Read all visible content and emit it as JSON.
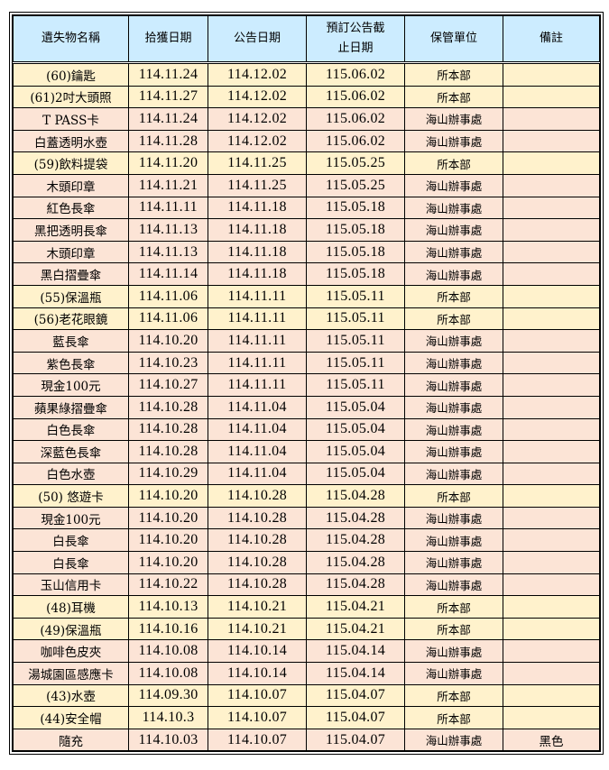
{
  "headers": [
    "遺失物名稱",
    "拾獲日期",
    "公告日期",
    "預訂公告截止日期",
    "保管單位",
    "備註"
  ],
  "header_lines": {
    "deadline_1": "預訂公告截",
    "deadline_2": "止日期"
  },
  "colors": {
    "header": "#CCECFF",
    "main_office_row": "#FFF2CC",
    "branch_row": "#FCE4D6"
  },
  "rows": [
    [
      "(60)鑰匙",
      "114.11.24",
      "114.12.02",
      "115.06.02",
      "所本部",
      ""
    ],
    [
      "(61)2吋大頭照",
      "114.11.27",
      "114.12.02",
      "115.06.02",
      "所本部",
      ""
    ],
    [
      "T PASS卡",
      "114.11.24",
      "114.12.02",
      "115.06.02",
      "海山辦事處",
      ""
    ],
    [
      "白蓋透明水壺",
      "114.11.28",
      "114.12.02",
      "115.06.02",
      "海山辦事處",
      ""
    ],
    [
      "(59)飲料提袋",
      "114.11.20",
      "114.11.25",
      "115.05.25",
      "所本部",
      ""
    ],
    [
      "木頭印章",
      "114.11.21",
      "114.11.25",
      "115.05.25",
      "海山辦事處",
      ""
    ],
    [
      "紅色長傘",
      "114.11.11",
      "114.11.18",
      "115.05.18",
      "海山辦事處",
      ""
    ],
    [
      "黑把透明長傘",
      "114.11.13",
      "114.11.18",
      "115.05.18",
      "海山辦事處",
      ""
    ],
    [
      "木頭印章",
      "114.11.13",
      "114.11.18",
      "115.05.18",
      "海山辦事處",
      ""
    ],
    [
      "黑白摺疊傘",
      "114.11.14",
      "114.11.18",
      "115.05.18",
      "海山辦事處",
      ""
    ],
    [
      "(55)保溫瓶",
      "114.11.06",
      "114.11.11",
      "115.05.11",
      "所本部",
      ""
    ],
    [
      "(56)老花眼鏡",
      "114.11.06",
      "114.11.11",
      "115.05.11",
      "所本部",
      ""
    ],
    [
      "藍長傘",
      "114.10.20",
      "114.11.11",
      "115.05.11",
      "海山辦事處",
      ""
    ],
    [
      "紫色長傘",
      "114.10.23",
      "114.11.11",
      "115.05.11",
      "海山辦事處",
      ""
    ],
    [
      "現金100元",
      "114.10.27",
      "114.11.11",
      "115.05.11",
      "海山辦事處",
      ""
    ],
    [
      "蘋果綠摺疊傘",
      "114.10.28",
      "114.11.04",
      "115.05.04",
      "海山辦事處",
      ""
    ],
    [
      "白色長傘",
      "114.10.28",
      "114.11.04",
      "115.05.04",
      "海山辦事處",
      ""
    ],
    [
      "深藍色長傘",
      "114.10.28",
      "114.11.04",
      "115.05.04",
      "海山辦事處",
      ""
    ],
    [
      "白色水壺",
      "114.10.29",
      "114.11.04",
      "115.05.04",
      "海山辦事處",
      ""
    ],
    [
      "(50) 悠遊卡",
      "114.10.20",
      "114.10.28",
      "115.04.28",
      "所本部",
      ""
    ],
    [
      "現金100元",
      "114.10.20",
      "114.10.28",
      "115.04.28",
      "海山辦事處",
      ""
    ],
    [
      "白長傘",
      "114.10.20",
      "114.10.28",
      "115.04.28",
      "海山辦事處",
      ""
    ],
    [
      "白長傘",
      "114.10.20",
      "114.10.28",
      "115.04.28",
      "海山辦事處",
      ""
    ],
    [
      "玉山信用卡",
      "114.10.22",
      "114.10.28",
      "115.04.28",
      "海山辦事處",
      ""
    ],
    [
      "(48)耳機",
      "114.10.13",
      "114.10.21",
      "115.04.21",
      "所本部",
      ""
    ],
    [
      "(49)保溫瓶",
      "114.10.16",
      "114.10.21",
      "115.04.21",
      "所本部",
      ""
    ],
    [
      "咖啡色皮夾",
      "114.10.08",
      "114.10.14",
      "115.04.14",
      "海山辦事處",
      ""
    ],
    [
      "湯城園區感應卡",
      "114.10.08",
      "114.10.14",
      "115.04.14",
      "海山辦事處",
      ""
    ],
    [
      "(43)水壺",
      "114.09.30",
      "114.10.07",
      "115.04.07",
      "所本部",
      ""
    ],
    [
      "(44)安全帽",
      "114.10.3",
      "114.10.07",
      "115.04.07",
      "所本部",
      ""
    ],
    [
      "隨充",
      "114.10.03",
      "114.10.07",
      "115.04.07",
      "海山辦事處",
      "黑色"
    ]
  ]
}
